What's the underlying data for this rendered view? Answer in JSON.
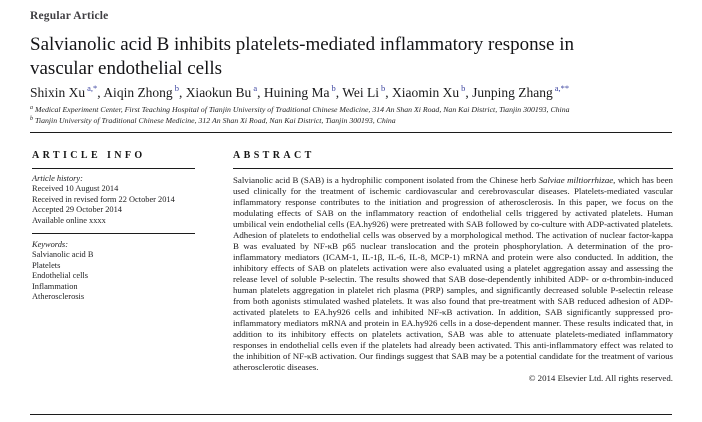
{
  "article_type": "Regular Article",
  "title": "Salvianolic acid B inhibits platelets-mediated inflammatory response in vascular endothelial cells",
  "authors": [
    {
      "name": "Shixin Xu",
      "sup": "a,*",
      "sep": ", "
    },
    {
      "name": "Aiqin Zhong",
      "sup": "b",
      "sep": ", "
    },
    {
      "name": "Xiaokun Bu",
      "sup": "a",
      "sep": ", "
    },
    {
      "name": "Huining Ma",
      "sup": "b",
      "sep": ", "
    },
    {
      "name": "Wei Li",
      "sup": "b",
      "sep": ", "
    },
    {
      "name": "Xiaomin Xu",
      "sup": "b",
      "sep": ", "
    },
    {
      "name": "Junping Zhang",
      "sup": "a,**",
      "sep": ""
    }
  ],
  "affiliations": [
    {
      "marker": "a",
      "text": "Medical Experiment Center, First Teaching Hospital of Tianjin University of Traditional Chinese Medicine, 314 An Shan Xi Road, Nan Kai District, Tianjin 300193, China"
    },
    {
      "marker": "b",
      "text": "Tianjin University of Traditional Chinese Medicine, 312 An Shan Xi Road, Nan Kai District, Tianjin 300193, China"
    }
  ],
  "article_info": {
    "heading_word1": "ARTICLE",
    "heading_word2": "INFO",
    "history_label": "Article history:",
    "history": [
      "Received 10 August 2014",
      "Received in revised form 22 October 2014",
      "Accepted 29 October 2014",
      "Available online xxxx"
    ],
    "keywords_label": "Keywords:",
    "keywords": [
      "Salvianolic acid B",
      "Platelets",
      "Endothelial cells",
      "Inflammation",
      "Atherosclerosis"
    ]
  },
  "abstract": {
    "heading": "ABSTRACT",
    "p1": "Salvianolic acid B (SAB) is a hydrophilic component isolated from the Chinese herb ",
    "italic_term": "Salviae miltiorrhizae",
    "p2": ", which has been used clinically for the treatment of ischemic cardiovascular and cerebrovascular diseases. Platelets-mediated vascular inflammatory response contributes to the initiation and progression of atherosclerosis. In this paper, we focus on the modulating effects of SAB on the inflammatory reaction of endothelial cells triggered by activated platelets. Human umbilical vein endothelial cells (EA.hy926) were pretreated with SAB followed by co-culture with ADP-activated platelets. Adhesion of platelets to endothelial cells was observed by a morphological method. The activation of nuclear factor-kappa B was evaluated by NF-κB p65 nuclear translocation and the protein phosphorylation. A determination of the pro-inflammatory mediators (ICAM-1, IL-1β, IL-6, IL-8, MCP-1) mRNA and protein were also conducted. In addition, the inhibitory effects of SAB on platelets activation were also evaluated using a platelet aggregation assay and assessing the release level of soluble P-selectin. The results showed that SAB dose-dependently inhibited ADP- or α-thrombin-induced human platelets aggregation in platelet rich plasma (PRP) samples, and significantly decreased soluble P-selectin release from both agonists stimulated washed platelets. It was also found that pre-treatment with SAB reduced adhesion of ADP-activated platelets to EA.hy926 cells and inhibited NF-κB activation. In addition, SAB significantly suppressed pro-inflammatory mediators mRNA and protein in EA.hy926 cells in a dose-dependent manner. These results indicated that, in addition to its inhibitory effects on platelets activation, SAB was able to attenuate platelets-mediated inflammatory responses in endothelial cells even if the platelets had already been activated. This anti-inflammatory effect was related to the inhibition of NF-κB activation. Our findings suggest that SAB may be a potential candidate for the treatment of various atherosclerotic diseases.",
    "copyright": "© 2014 Elsevier Ltd. All rights reserved."
  },
  "colors": {
    "superscript_blue": "#3b439f",
    "text": "#1d1d1f",
    "rule": "#1c1c1c"
  }
}
